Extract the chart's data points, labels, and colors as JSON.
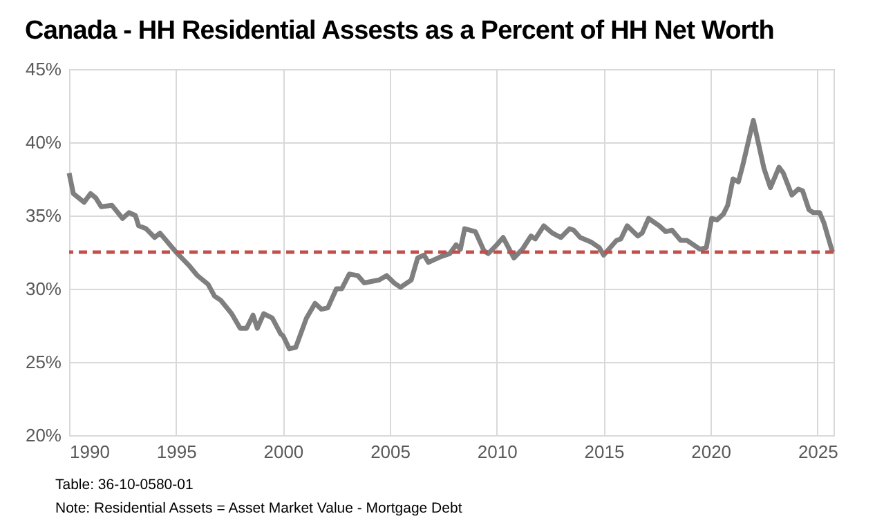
{
  "chart_data": {
    "type": "line",
    "title": "Canada - HH Residential Assests as a Percent of HH Net Worth",
    "annotations": [
      "Table: 36-10-0580-01",
      "Note: Residential Assets = Asset Market Value - Mortgage Debt"
    ],
    "x": [
      1990.0,
      1990.2,
      1990.7,
      1991.0,
      1991.25,
      1991.5,
      1992.0,
      1992.5,
      1992.8,
      1993.1,
      1993.25,
      1993.6,
      1994.0,
      1994.25,
      1994.6,
      1995.0,
      1995.6,
      1996.0,
      1996.5,
      1996.8,
      1997.1,
      1997.6,
      1998.0,
      1998.3,
      1998.6,
      1998.8,
      1999.1,
      1999.5,
      1999.9,
      2000.0,
      2000.3,
      2000.6,
      2001.1,
      2001.5,
      2001.8,
      2002.1,
      2002.5,
      2002.75,
      2003.1,
      2003.5,
      2003.8,
      2004.5,
      2004.85,
      2005.2,
      2005.5,
      2006.0,
      2006.3,
      2006.6,
      2006.8,
      2007.4,
      2007.8,
      2008.1,
      2008.3,
      2008.5,
      2009.0,
      2009.4,
      2009.6,
      2010.0,
      2010.3,
      2010.8,
      2011.2,
      2011.6,
      2011.8,
      2012.2,
      2012.6,
      2013.0,
      2013.4,
      2013.6,
      2013.9,
      2014.4,
      2014.8,
      2015.0,
      2015.6,
      2015.8,
      2016.1,
      2016.6,
      2016.8,
      2017.1,
      2017.6,
      2017.9,
      2018.2,
      2018.6,
      2018.9,
      2019.2,
      2019.5,
      2019.8,
      2020.05,
      2020.3,
      2020.6,
      2020.8,
      2021.05,
      2021.3,
      2021.5,
      2022.0,
      2022.5,
      2022.8,
      2023.2,
      2023.4,
      2023.8,
      2024.1,
      2024.3,
      2024.6,
      2024.8,
      2025.1,
      2025.3,
      2025.7
    ],
    "series": [
      {
        "color": "#7f7f7f",
        "values": [
          37.9,
          36.5,
          35.9,
          36.5,
          36.2,
          35.6,
          35.7,
          34.8,
          35.2,
          35.0,
          34.3,
          34.1,
          33.5,
          33.8,
          33.2,
          32.5,
          31.6,
          30.9,
          30.3,
          29.5,
          29.2,
          28.3,
          27.3,
          27.3,
          28.2,
          27.3,
          28.3,
          28.0,
          26.9,
          26.8,
          25.9,
          26.0,
          28.0,
          29.0,
          28.6,
          28.7,
          30.0,
          30.0,
          31.0,
          30.9,
          30.4,
          30.6,
          30.9,
          30.4,
          30.1,
          30.6,
          32.1,
          32.3,
          31.8,
          32.2,
          32.4,
          33.0,
          32.7,
          34.1,
          33.9,
          32.6,
          32.4,
          33.0,
          33.5,
          32.1,
          32.7,
          33.6,
          33.4,
          34.3,
          33.8,
          33.5,
          34.1,
          34.0,
          33.5,
          33.2,
          32.8,
          32.3,
          33.3,
          33.4,
          34.3,
          33.6,
          33.8,
          34.8,
          34.3,
          33.9,
          34.0,
          33.3,
          33.3,
          33.0,
          32.7,
          32.8,
          34.8,
          34.7,
          35.1,
          35.7,
          37.5,
          37.3,
          38.4,
          41.5,
          38.2,
          36.9,
          38.3,
          37.9,
          36.4,
          36.8,
          36.7,
          35.4,
          35.2,
          35.2,
          34.5,
          32.5
        ]
      }
    ],
    "xlim": [
      1990,
      2025.75
    ],
    "xticks": [
      1990,
      1995,
      2000,
      2005,
      2010,
      2015,
      2020,
      2025
    ],
    "ylim": [
      20,
      45
    ],
    "yticks": [
      {
        "value": 20,
        "label": "20%"
      },
      {
        "value": 25,
        "label": "25%"
      },
      {
        "value": 30,
        "label": "30%"
      },
      {
        "value": 35,
        "label": "35%"
      },
      {
        "value": 40,
        "label": "40%"
      },
      {
        "value": 45,
        "label": "45%"
      }
    ],
    "ref_lines": [
      {
        "axis": "y",
        "value": 32.5,
        "color": "#c0504d",
        "line_style": "dashed"
      }
    ],
    "grid": true,
    "line_style": "solid",
    "marker": "none"
  }
}
